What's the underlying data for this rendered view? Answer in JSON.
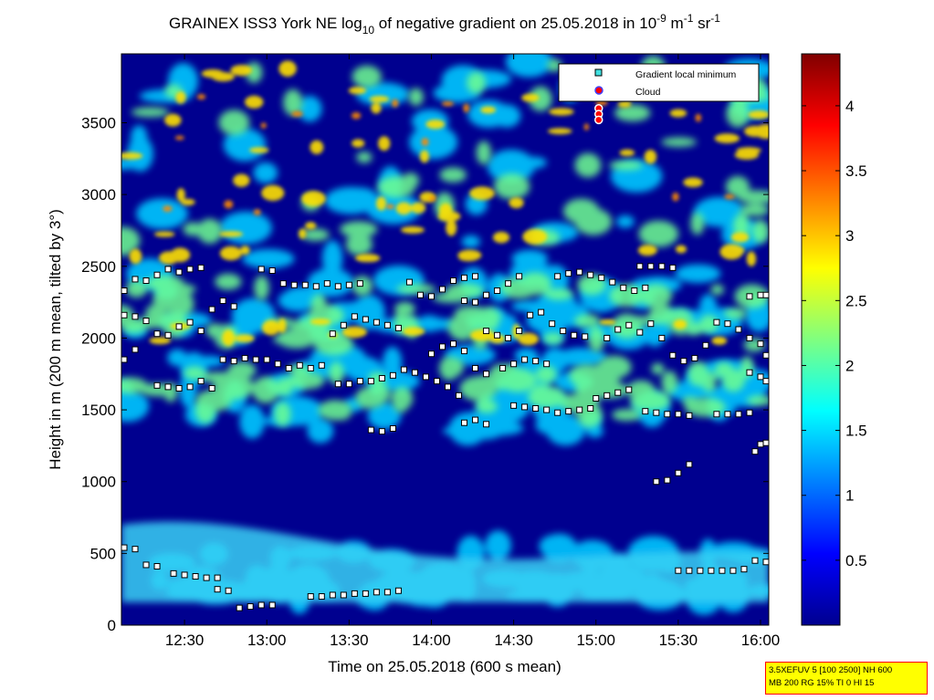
{
  "chart_data": {
    "type": "heatmap",
    "title": {
      "prefix": "GRAINEX ISS3 York NE log",
      "sub": "10",
      "middle": " of negative gradient on 25.05.2018 in 10",
      "sup1": "-9",
      "unit1": " m",
      "sup2": "-1",
      "unit2": " sr",
      "sup3": "-1"
    },
    "xlabel": "Time on 25.05.2018 (600 s mean)",
    "ylabel": "Height in m (200 m mean, tilted by 3°)",
    "x_ticks": [
      "12:30",
      "13:00",
      "13:30",
      "14:00",
      "14:30",
      "15:00",
      "15:30",
      "16:00"
    ],
    "x_tick_minutes": [
      750,
      780,
      810,
      840,
      870,
      900,
      930,
      960
    ],
    "xlim_minutes": [
      727,
      963
    ],
    "y_ticks": [
      0,
      500,
      1000,
      1500,
      2000,
      2500,
      3000,
      3500
    ],
    "ylim": [
      0,
      3980
    ],
    "colorbar": {
      "ticks": [
        "0.5",
        "1",
        "1.5",
        "2",
        "2.5",
        "3",
        "3.5",
        "4"
      ],
      "tick_values": [
        0.5,
        1,
        1.5,
        2,
        2.5,
        3,
        3.5,
        4
      ],
      "range": [
        0,
        4.4
      ],
      "colormap": "jet"
    },
    "legend": {
      "position": "top-right",
      "entries": [
        {
          "label": "Gradient local minimum",
          "marker": "square",
          "color": "#40e0e0"
        },
        {
          "label": "Cloud",
          "marker": "circle",
          "color": "#ff0000",
          "edge": "#4040ff"
        }
      ]
    },
    "series": [
      {
        "name": "Gradient local minimum",
        "layers": [
          {
            "points": [
              [
                728,
                2330
              ],
              [
                732,
                2410
              ],
              [
                736,
                2400
              ],
              [
                740,
                2440
              ],
              [
                744,
                2480
              ],
              [
                748,
                2460
              ],
              [
                752,
                2480
              ],
              [
                756,
                2490
              ]
            ]
          },
          {
            "points": [
              [
                728,
                2160
              ],
              [
                732,
                2150
              ],
              [
                736,
                2120
              ],
              [
                740,
                2030
              ],
              [
                744,
                2020
              ],
              [
                748,
                2080
              ],
              [
                752,
                2110
              ],
              [
                756,
                2050
              ],
              [
                760,
                2200
              ],
              [
                764,
                2260
              ],
              [
                768,
                2220
              ]
            ]
          },
          {
            "points": [
              [
                728,
                1850
              ],
              [
                732,
                1920
              ]
            ]
          },
          {
            "points": [
              [
                740,
                1670
              ],
              [
                744,
                1660
              ],
              [
                748,
                1650
              ],
              [
                752,
                1660
              ],
              [
                756,
                1700
              ],
              [
                760,
                1650
              ],
              [
                764,
                1850
              ],
              [
                768,
                1840
              ],
              [
                772,
                1860
              ],
              [
                776,
                1850
              ],
              [
                780,
                1850
              ],
              [
                784,
                1820
              ],
              [
                788,
                1790
              ],
              [
                792,
                1810
              ],
              [
                796,
                1790
              ],
              [
                800,
                1810
              ]
            ]
          },
          {
            "points": [
              [
                778,
                2480
              ],
              [
                782,
                2470
              ],
              [
                786,
                2380
              ],
              [
                790,
                2370
              ],
              [
                794,
                2370
              ],
              [
                798,
                2360
              ],
              [
                802,
                2380
              ],
              [
                806,
                2360
              ],
              [
                810,
                2370
              ],
              [
                814,
                2380
              ]
            ]
          },
          {
            "points": [
              [
                804,
                2030
              ],
              [
                808,
                2090
              ],
              [
                812,
                2150
              ],
              [
                816,
                2130
              ],
              [
                820,
                2110
              ],
              [
                824,
                2090
              ],
              [
                828,
                2070
              ]
            ]
          },
          {
            "points": [
              [
                806,
                1680
              ],
              [
                810,
                1680
              ],
              [
                814,
                1700
              ],
              [
                818,
                1700
              ],
              [
                822,
                1720
              ],
              [
                826,
                1740
              ],
              [
                830,
                1780
              ],
              [
                834,
                1760
              ],
              [
                838,
                1730
              ],
              [
                842,
                1700
              ],
              [
                846,
                1660
              ],
              [
                850,
                1600
              ]
            ]
          },
          {
            "points": [
              [
                818,
                1360
              ],
              [
                822,
                1350
              ],
              [
                826,
                1370
              ]
            ]
          },
          {
            "points": [
              [
                832,
                2390
              ],
              [
                836,
                2300
              ],
              [
                840,
                2290
              ],
              [
                844,
                2340
              ],
              [
                848,
                2400
              ],
              [
                852,
                2420
              ],
              [
                856,
                2430
              ]
            ]
          },
          {
            "points": [
              [
                840,
                1890
              ],
              [
                844,
                1940
              ],
              [
                848,
                1960
              ],
              [
                852,
                1910
              ],
              [
                856,
                1790
              ],
              [
                860,
                1750
              ]
            ]
          },
          {
            "points": [
              [
                852,
                2260
              ],
              [
                856,
                2250
              ],
              [
                860,
                2300
              ],
              [
                864,
                2330
              ],
              [
                868,
                2380
              ],
              [
                872,
                2430
              ]
            ]
          },
          {
            "points": [
              [
                852,
                1410
              ],
              [
                856,
                1430
              ],
              [
                860,
                1400
              ]
            ]
          },
          {
            "points": [
              [
                860,
                2050
              ],
              [
                864,
                2020
              ],
              [
                868,
                2000
              ],
              [
                872,
                2050
              ]
            ]
          },
          {
            "points": [
              [
                866,
                1790
              ],
              [
                870,
                1820
              ],
              [
                874,
                1850
              ],
              [
                878,
                1840
              ],
              [
                882,
                1820
              ]
            ]
          },
          {
            "points": [
              [
                870,
                1530
              ],
              [
                874,
                1520
              ],
              [
                878,
                1510
              ],
              [
                882,
                1500
              ],
              [
                886,
                1480
              ],
              [
                890,
                1490
              ],
              [
                894,
                1500
              ],
              [
                898,
                1510
              ]
            ]
          },
          {
            "points": [
              [
                876,
                2160
              ],
              [
                880,
                2180
              ],
              [
                884,
                2100
              ],
              [
                888,
                2050
              ],
              [
                892,
                2020
              ],
              [
                896,
                2010
              ]
            ]
          },
          {
            "points": [
              [
                886,
                2430
              ],
              [
                890,
                2450
              ],
              [
                894,
                2460
              ],
              [
                898,
                2440
              ],
              [
                902,
                2420
              ],
              [
                906,
                2390
              ],
              [
                910,
                2350
              ],
              [
                914,
                2330
              ],
              [
                918,
                2350
              ]
            ]
          },
          {
            "points": [
              [
                900,
                1580
              ],
              [
                904,
                1600
              ],
              [
                908,
                1620
              ],
              [
                912,
                1640
              ]
            ]
          },
          {
            "points": [
              [
                904,
                2000
              ],
              [
                908,
                2060
              ],
              [
                912,
                2090
              ],
              [
                916,
                2040
              ]
            ]
          },
          {
            "points": [
              [
                916,
                2500
              ],
              [
                920,
                2500
              ],
              [
                924,
                2500
              ],
              [
                928,
                2490
              ]
            ]
          },
          {
            "points": [
              [
                918,
                1490
              ],
              [
                922,
                1480
              ],
              [
                926,
                1470
              ],
              [
                930,
                1470
              ],
              [
                934,
                1460
              ]
            ]
          },
          {
            "points": [
              [
                920,
                2100
              ],
              [
                924,
                2000
              ],
              [
                928,
                1880
              ],
              [
                932,
                1840
              ],
              [
                936,
                1860
              ],
              [
                940,
                1950
              ]
            ]
          },
          {
            "points": [
              [
                922,
                1000
              ],
              [
                926,
                1010
              ],
              [
                930,
                1060
              ],
              [
                934,
                1120
              ]
            ]
          },
          {
            "points": [
              [
                930,
                380
              ],
              [
                934,
                380
              ],
              [
                938,
                380
              ],
              [
                942,
                380
              ],
              [
                946,
                380
              ],
              [
                950,
                380
              ],
              [
                954,
                390
              ]
            ]
          },
          {
            "points": [
              [
                944,
                2110
              ],
              [
                948,
                2100
              ],
              [
                952,
                2060
              ],
              [
                956,
                2000
              ],
              [
                960,
                1960
              ],
              [
                962,
                1880
              ]
            ]
          },
          {
            "points": [
              [
                944,
                1470
              ],
              [
                948,
                1470
              ],
              [
                952,
                1470
              ],
              [
                956,
                1480
              ]
            ]
          },
          {
            "points": [
              [
                956,
                2290
              ],
              [
                960,
                2300
              ],
              [
                962,
                2300
              ]
            ]
          },
          {
            "points": [
              [
                956,
                1760
              ],
              [
                960,
                1730
              ],
              [
                962,
                1700
              ]
            ]
          },
          {
            "points": [
              [
                958,
                1210
              ],
              [
                960,
                1260
              ],
              [
                962,
                1270
              ]
            ]
          },
          {
            "points": [
              [
                958,
                450
              ],
              [
                962,
                440
              ]
            ]
          },
          {
            "points": [
              [
                728,
                540
              ],
              [
                732,
                530
              ]
            ]
          },
          {
            "points": [
              [
                736,
                420
              ],
              [
                740,
                410
              ]
            ]
          },
          {
            "points": [
              [
                746,
                360
              ],
              [
                750,
                350
              ],
              [
                754,
                340
              ],
              [
                758,
                330
              ],
              [
                762,
                330
              ]
            ]
          },
          {
            "points": [
              [
                762,
                250
              ],
              [
                766,
                240
              ]
            ]
          },
          {
            "points": [
              [
                770,
                120
              ],
              [
                774,
                130
              ],
              [
                778,
                140
              ],
              [
                782,
                140
              ]
            ]
          },
          {
            "points": [
              [
                796,
                200
              ],
              [
                800,
                200
              ],
              [
                804,
                210
              ],
              [
                808,
                210
              ],
              [
                812,
                220
              ],
              [
                816,
                220
              ],
              [
                820,
                230
              ],
              [
                824,
                230
              ],
              [
                828,
                240
              ]
            ]
          }
        ]
      },
      {
        "name": "Cloud",
        "points": [
          [
            901,
            3600
          ],
          [
            901,
            3560
          ],
          [
            901,
            3520
          ]
        ]
      }
    ]
  },
  "param_box": {
    "line1": "3.5XEFUV 5 [100 2500] NH 600",
    "line2": "MB 200 RG 15% TI 0 HI 15"
  }
}
